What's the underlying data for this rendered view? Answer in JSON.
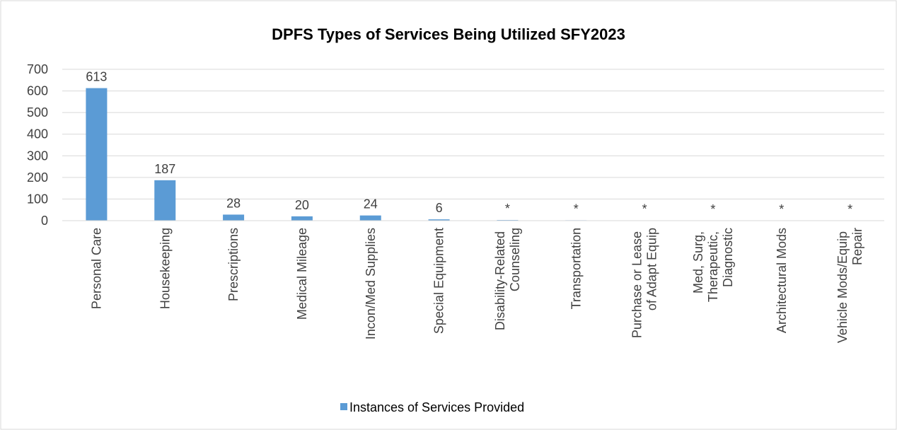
{
  "chart_data": {
    "type": "bar",
    "title": "DPFS Types of Services Being Utilized SFY2023",
    "categories": [
      "Personal Care",
      "Housekeeping",
      "Prescriptions",
      "Medical Mileage",
      "Incon/Med Supplies",
      "Special Equipment",
      "Disability-Related Counseling",
      "Transportation",
      "Purchase or Lease of Adapt Equip",
      "Med, Surg, Therapeutic, Diagnostic",
      "Architectural Mods",
      "Vehicle Mods/Equip Repair"
    ],
    "series": [
      {
        "name": "Instances of Services Provided",
        "color": "#5b9bd5",
        "values": [
          613,
          187,
          28,
          20,
          24,
          6,
          3,
          2,
          1,
          0,
          0,
          0
        ],
        "value_labels": [
          "613",
          "187",
          "28",
          "20",
          "24",
          "6",
          "*",
          "*",
          "*",
          "*",
          "*",
          "*"
        ]
      }
    ],
    "ylim": [
      0,
      700
    ],
    "yticks": [
      0,
      100,
      200,
      300,
      400,
      500,
      600,
      700
    ],
    "grid": true,
    "legend": "bottom"
  }
}
